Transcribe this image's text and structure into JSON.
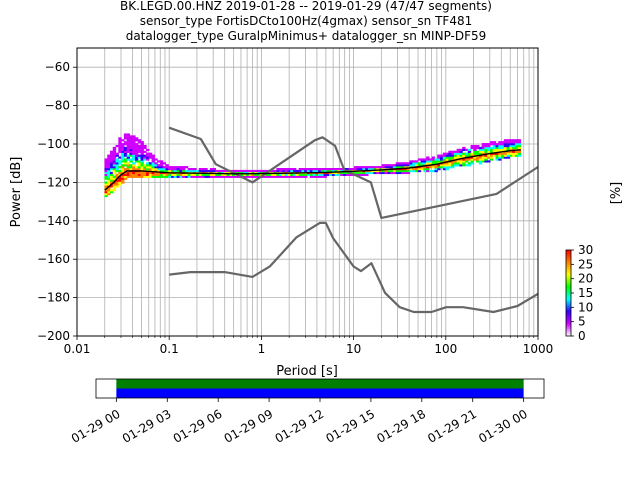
{
  "chart_data": {
    "type": "probabilistic_power_spectral_density",
    "title_lines": [
      "BK.LEGD.00.HNZ   2019-01-28 -- 2019-01-29  (47/47 segments)",
      "sensor_type FortisDCto100Hz(4gmax) sensor_sn TF481",
      "datalogger_type GuralpMinimus+ datalogger_sn MINP-DF59"
    ],
    "xlabel": "Period [s]",
    "ylabel": "Power [dB]",
    "xscale": "log",
    "xlim": [
      0.01,
      1000
    ],
    "ylim": [
      -200,
      -50
    ],
    "xticks": [
      {
        "value": 0.01,
        "label": "0.01"
      },
      {
        "value": 0.1,
        "label": "0.1"
      },
      {
        "value": 1,
        "label": "1"
      },
      {
        "value": 10,
        "label": "10"
      },
      {
        "value": 100,
        "label": "100"
      },
      {
        "value": 1000,
        "label": "1000"
      }
    ],
    "yticks": [
      -200,
      -180,
      -160,
      -140,
      -120,
      -100,
      -80,
      -60
    ],
    "grid": true,
    "colorbar": {
      "label": "[%]",
      "ticks": [
        0,
        5,
        10,
        15,
        20,
        25,
        30
      ],
      "range": [
        0,
        30
      ],
      "colors": [
        "#ffffff",
        "#d000ff",
        "#3000ff",
        "#00ffff",
        "#00ff00",
        "#ffff00",
        "#ff8000",
        "#ff0000"
      ]
    },
    "noise_models": {
      "NHNM": {
        "period": [
          0.1,
          0.22,
          0.32,
          0.8,
          3.8,
          4.6,
          6.3,
          7.9,
          15.4,
          20,
          354.8,
          1000
        ],
        "power": [
          -91.5,
          -97.4,
          -110.5,
          -120.0,
          -98.0,
          -96.5,
          -101.0,
          -113.5,
          -120.0,
          -138.5,
          -126.0,
          -112.0
        ]
      },
      "NLNM": {
        "period": [
          0.1,
          0.17,
          0.4,
          0.8,
          1.24,
          2.4,
          4.3,
          5.0,
          6.0,
          10.0,
          12.0,
          15.6,
          21.9,
          31.6,
          45.0,
          70.0,
          101.0,
          154.0,
          328.0,
          600.0,
          1000.0
        ],
        "power": [
          -168.0,
          -166.7,
          -166.7,
          -169.2,
          -163.7,
          -148.6,
          -141.1,
          -141.1,
          -149.0,
          -163.8,
          -166.2,
          -162.1,
          -177.5,
          -185.0,
          -187.5,
          -187.5,
          -185.0,
          -185.0,
          -187.5,
          -184.4,
          -178.0
        ]
      }
    },
    "median_curve": {
      "period": [
        0.02,
        0.025,
        0.03,
        0.035,
        0.05,
        0.07,
        0.1,
        0.2,
        0.5,
        1,
        2,
        5,
        10,
        20,
        40,
        80,
        150,
        300,
        500,
        650
      ],
      "power": [
        -124,
        -120,
        -116,
        -114,
        -114,
        -114.5,
        -115,
        -115.2,
        -115.5,
        -115.4,
        -115.2,
        -114.8,
        -114.2,
        -113.5,
        -112.5,
        -110.5,
        -107.5,
        -105.0,
        -103.5,
        -103.0
      ]
    },
    "spread_upper": {
      "period": [
        0.02,
        0.025,
        0.03,
        0.035,
        0.05,
        0.07,
        0.1,
        0.2,
        0.5,
        1,
        2,
        5,
        10,
        20,
        40,
        80,
        150,
        300,
        500,
        650
      ],
      "power": [
        -110,
        -103,
        -97,
        -95,
        -99,
        -108,
        -112,
        -113.5,
        -114.5,
        -114.3,
        -113.8,
        -113.5,
        -113,
        -112,
        -110,
        -107,
        -103,
        -100,
        -98.5,
        -98
      ]
    },
    "spread_lower": {
      "period": [
        0.02,
        0.025,
        0.03,
        0.035,
        0.05,
        0.07,
        0.1,
        0.2,
        0.5,
        1,
        2,
        5,
        10,
        20,
        40,
        80,
        150,
        300,
        500,
        650
      ],
      "power": [
        -127,
        -124,
        -120,
        -117,
        -116.5,
        -116.5,
        -116.3,
        -116.3,
        -116.5,
        -116.5,
        -116.3,
        -116,
        -115.5,
        -114.5,
        -114,
        -113,
        -111,
        -108,
        -106,
        -105.5
      ]
    },
    "timeline": {
      "tick_labels": [
        "01-29 00",
        "01-29 03",
        "01-29 06",
        "01-29 09",
        "01-29 12",
        "01-29 15",
        "01-29 18",
        "01-29 21",
        "01-30 00"
      ],
      "tick_hours": [
        0,
        3,
        6,
        9,
        12,
        15,
        18,
        21,
        24
      ],
      "range_hours": [
        -1.2,
        25.2
      ],
      "coverage_hours": [
        0,
        24
      ],
      "bar_colors": [
        "#008000",
        "#0000ff"
      ]
    }
  }
}
